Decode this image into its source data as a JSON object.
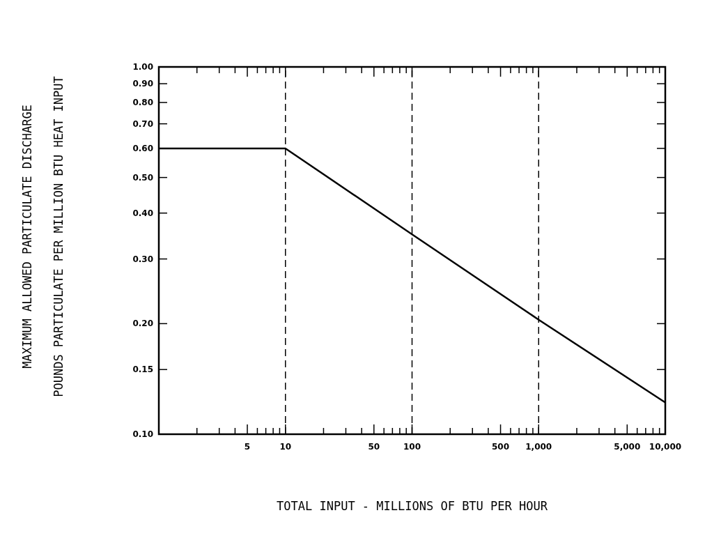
{
  "chart_data": {
    "type": "line",
    "xlabel": "TOTAL INPUT - MILLIONS OF BTU PER HOUR",
    "ylabel": "MAXIMUM ALLOWED PARTICULATE DISCHARGE\nPOUNDS PARTICULATE PER MILLION BTU HEAT INPUT",
    "log": "xy",
    "grid": false,
    "line_style": "solid",
    "x": [
      1,
      10,
      100,
      1000,
      10000
    ],
    "series": [
      {
        "color": "#000000",
        "values": [
          0.6,
          0.6,
          0.35,
          0.205,
          0.122
        ]
      }
    ],
    "xlim": [
      1,
      10000
    ],
    "xticks": [
      {
        "value": 2,
        "label": null
      },
      {
        "value": 3,
        "label": null
      },
      {
        "value": 4,
        "label": null
      },
      5,
      {
        "value": 6,
        "label": null
      },
      {
        "value": 7,
        "label": null
      },
      {
        "value": 8,
        "label": null
      },
      {
        "value": 9,
        "label": null
      },
      10,
      {
        "value": 20,
        "label": null
      },
      {
        "value": 30,
        "label": null
      },
      {
        "value": 40,
        "label": null
      },
      50,
      {
        "value": 60,
        "label": null
      },
      {
        "value": 70,
        "label": null
      },
      {
        "value": 80,
        "label": null
      },
      {
        "value": 90,
        "label": null
      },
      100,
      {
        "value": 200,
        "label": null
      },
      {
        "value": 300,
        "label": null
      },
      {
        "value": 400,
        "label": null
      },
      500,
      {
        "value": 600,
        "label": null
      },
      {
        "value": 700,
        "label": null
      },
      {
        "value": 800,
        "label": null
      },
      {
        "value": 900,
        "label": null
      },
      {
        "value": 1000,
        "label": "1,000"
      },
      {
        "value": 2000,
        "label": null
      },
      {
        "value": 3000,
        "label": null
      },
      {
        "value": 4000,
        "label": null
      },
      {
        "value": 5000,
        "label": "5,000"
      },
      {
        "value": 6000,
        "label": null
      },
      {
        "value": 7000,
        "label": null
      },
      {
        "value": 8000,
        "label": null
      },
      {
        "value": 9000,
        "label": null
      },
      {
        "value": 10000,
        "label": "10,000"
      }
    ],
    "ylim": [
      0.1,
      1
    ],
    "yticks": [
      {
        "value": 0.1,
        "label": "0.10"
      },
      0.15,
      {
        "value": 0.2,
        "label": "0.20"
      },
      {
        "value": 0.3,
        "label": "0.30"
      },
      {
        "value": 0.4,
        "label": "0.40"
      },
      {
        "value": 0.5,
        "label": "0.50"
      },
      {
        "value": 0.6,
        "label": "0.60"
      },
      {
        "value": 0.7,
        "label": "0.70"
      },
      {
        "value": 0.8,
        "label": "0.80"
      },
      {
        "value": 0.9,
        "label": "0.90"
      },
      {
        "value": 1,
        "label": "1.00"
      }
    ],
    "ref_lines": [
      {
        "axis": "x",
        "value": 10,
        "line_style": "dashed"
      },
      {
        "axis": "x",
        "value": 100,
        "line_style": "dashed"
      },
      {
        "axis": "x",
        "value": 1000,
        "line_style": "dashed"
      }
    ]
  }
}
